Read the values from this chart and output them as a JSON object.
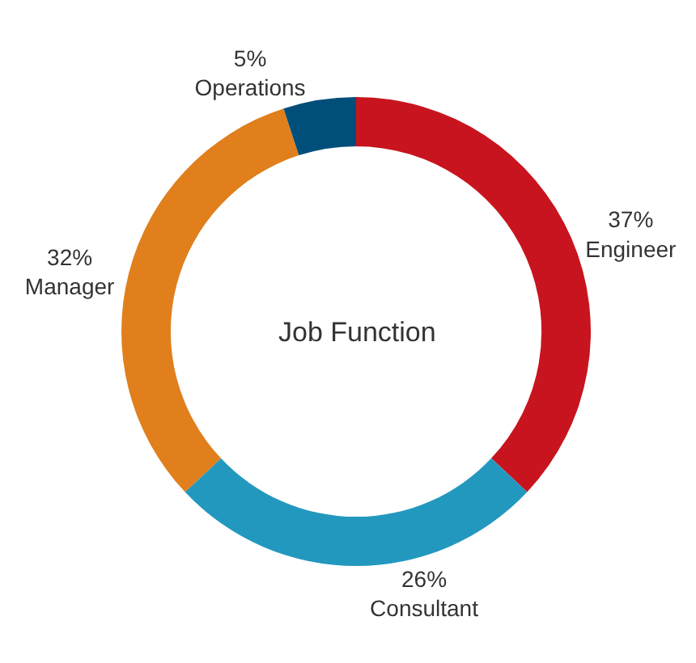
{
  "chart_data": {
    "type": "donut",
    "title": "Job Function",
    "categories": [
      "Engineer",
      "Consultant",
      "Manager",
      "Operations"
    ],
    "values": [
      37,
      26,
      32,
      5
    ],
    "value_labels": [
      "37%",
      "26%",
      "32%",
      "5%"
    ],
    "colors": [
      "#c8141e",
      "#2398bf",
      "#e07f1c",
      "#004f7a"
    ],
    "legend": false
  }
}
